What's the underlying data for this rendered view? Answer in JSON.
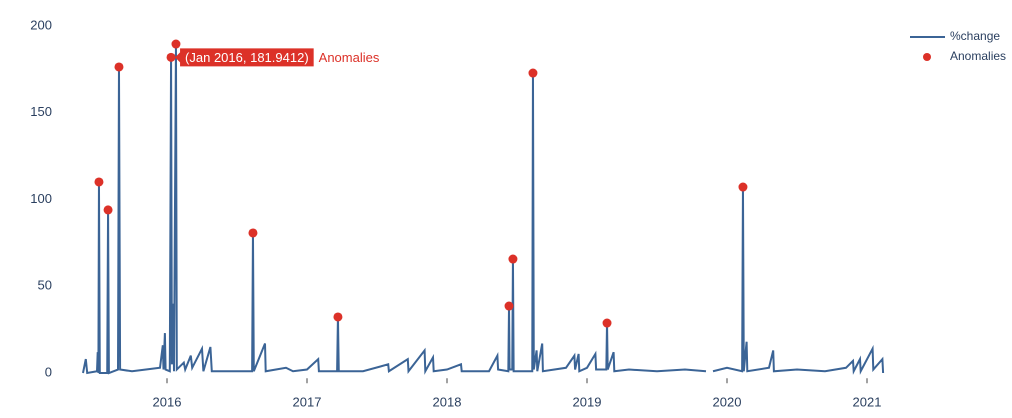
{
  "chart_data": {
    "type": "line",
    "series": [
      {
        "name": "%change",
        "color": "#3b6496",
        "x": [
          2015.4,
          2015.42,
          2015.43,
          2015.5,
          2015.505,
          2015.51,
          2015.514,
          2015.52,
          2015.573,
          2015.579,
          2015.585,
          2015.65,
          2015.657,
          2015.665,
          2015.75,
          2015.85,
          2015.95,
          2015.97,
          2015.975,
          2015.985,
          2015.99,
          2016.02,
          2016.029,
          2016.035,
          2016.045,
          2016.05,
          2016.064,
          2016.07,
          2016.12,
          2016.13,
          2016.17,
          2016.18,
          2016.25,
          2016.26,
          2016.31,
          2016.32,
          2016.45,
          2016.608,
          2016.614,
          2016.62,
          2016.7,
          2016.705,
          2016.85,
          2016.9,
          2017.0,
          2017.08,
          2017.085,
          2017.215,
          2017.221,
          2017.227,
          2017.4,
          2017.58,
          2017.585,
          2017.72,
          2017.725,
          2017.84,
          2017.845,
          2017.9,
          2017.905,
          2018.0,
          2018.1,
          2018.105,
          2018.3,
          2018.36,
          2018.365,
          2018.438,
          2018.443,
          2018.447,
          2018.466,
          2018.471,
          2018.476,
          2018.54,
          2018.609,
          2018.614,
          2018.62,
          2018.64,
          2018.645,
          2018.68,
          2018.685,
          2018.85,
          2018.91,
          2018.915,
          2018.94,
          2018.945,
          2019.0,
          2019.06,
          2019.065,
          2019.138,
          2019.143,
          2019.148,
          2019.19,
          2019.195,
          2019.3,
          2019.5,
          2019.7,
          2019.85,
          2019.875,
          2019.9,
          2020.0,
          2020.108,
          2020.114,
          2020.12,
          2020.14,
          2020.145,
          2020.3,
          2020.33,
          2020.335,
          2020.5,
          2020.7,
          2020.85,
          2020.9,
          2020.905,
          2020.95,
          2020.955,
          2021.04,
          2021.045,
          2021.11,
          2021.115
        ],
        "values": [
          0,
          8,
          0,
          1,
          12,
          0,
          110.1,
          0,
          0,
          94,
          0,
          2,
          176.4,
          2,
          1,
          2,
          3,
          16,
          2,
          23,
          2,
          1,
          181.9412,
          5,
          40,
          1,
          189.6,
          2,
          6,
          2,
          10,
          3,
          14,
          1,
          15,
          1,
          1,
          1,
          80.7,
          1,
          17,
          1,
          3,
          1,
          2,
          8,
          1,
          1,
          32.3,
          1,
          1,
          5,
          1,
          8,
          1,
          13,
          1,
          9,
          1,
          2,
          5,
          1,
          1,
          10,
          2,
          1,
          38.6,
          2,
          2,
          65.7,
          1,
          1,
          1,
          172.9,
          2,
          13,
          1,
          17,
          1,
          3,
          10,
          2,
          11,
          1,
          3,
          11,
          2,
          2,
          28.8,
          2,
          12,
          1,
          2,
          1,
          2,
          1,
          null,
          1,
          3,
          1,
          107.2,
          1,
          18,
          1,
          3,
          13,
          1,
          2,
          1,
          3,
          7,
          1,
          8,
          1,
          14,
          2,
          8,
          0
        ]
      },
      {
        "name": "Anomalies",
        "type": "scatter",
        "color": "#dc3128",
        "x": [
          2015.514,
          2015.579,
          2015.657,
          2016.029,
          2016.064,
          2016.614,
          2017.221,
          2018.443,
          2018.471,
          2018.614,
          2019.143,
          2020.114
        ],
        "values": [
          110.1,
          94,
          176.4,
          181.9412,
          189.6,
          80.7,
          32.3,
          38.6,
          65.7,
          172.9,
          28.8,
          107.2
        ]
      }
    ],
    "xlim": [
      2015.35,
      2021.2
    ],
    "xticks": [
      2016,
      2017,
      2018,
      2019,
      2020,
      2021
    ],
    "ylim": [
      -3,
      203
    ],
    "yticks": [
      0,
      50,
      100,
      150,
      200
    ],
    "grid": false,
    "legend": "top-right",
    "tooltip": {
      "text": "(Jan 2016, 181.9412)",
      "name": "Anomalies"
    }
  }
}
